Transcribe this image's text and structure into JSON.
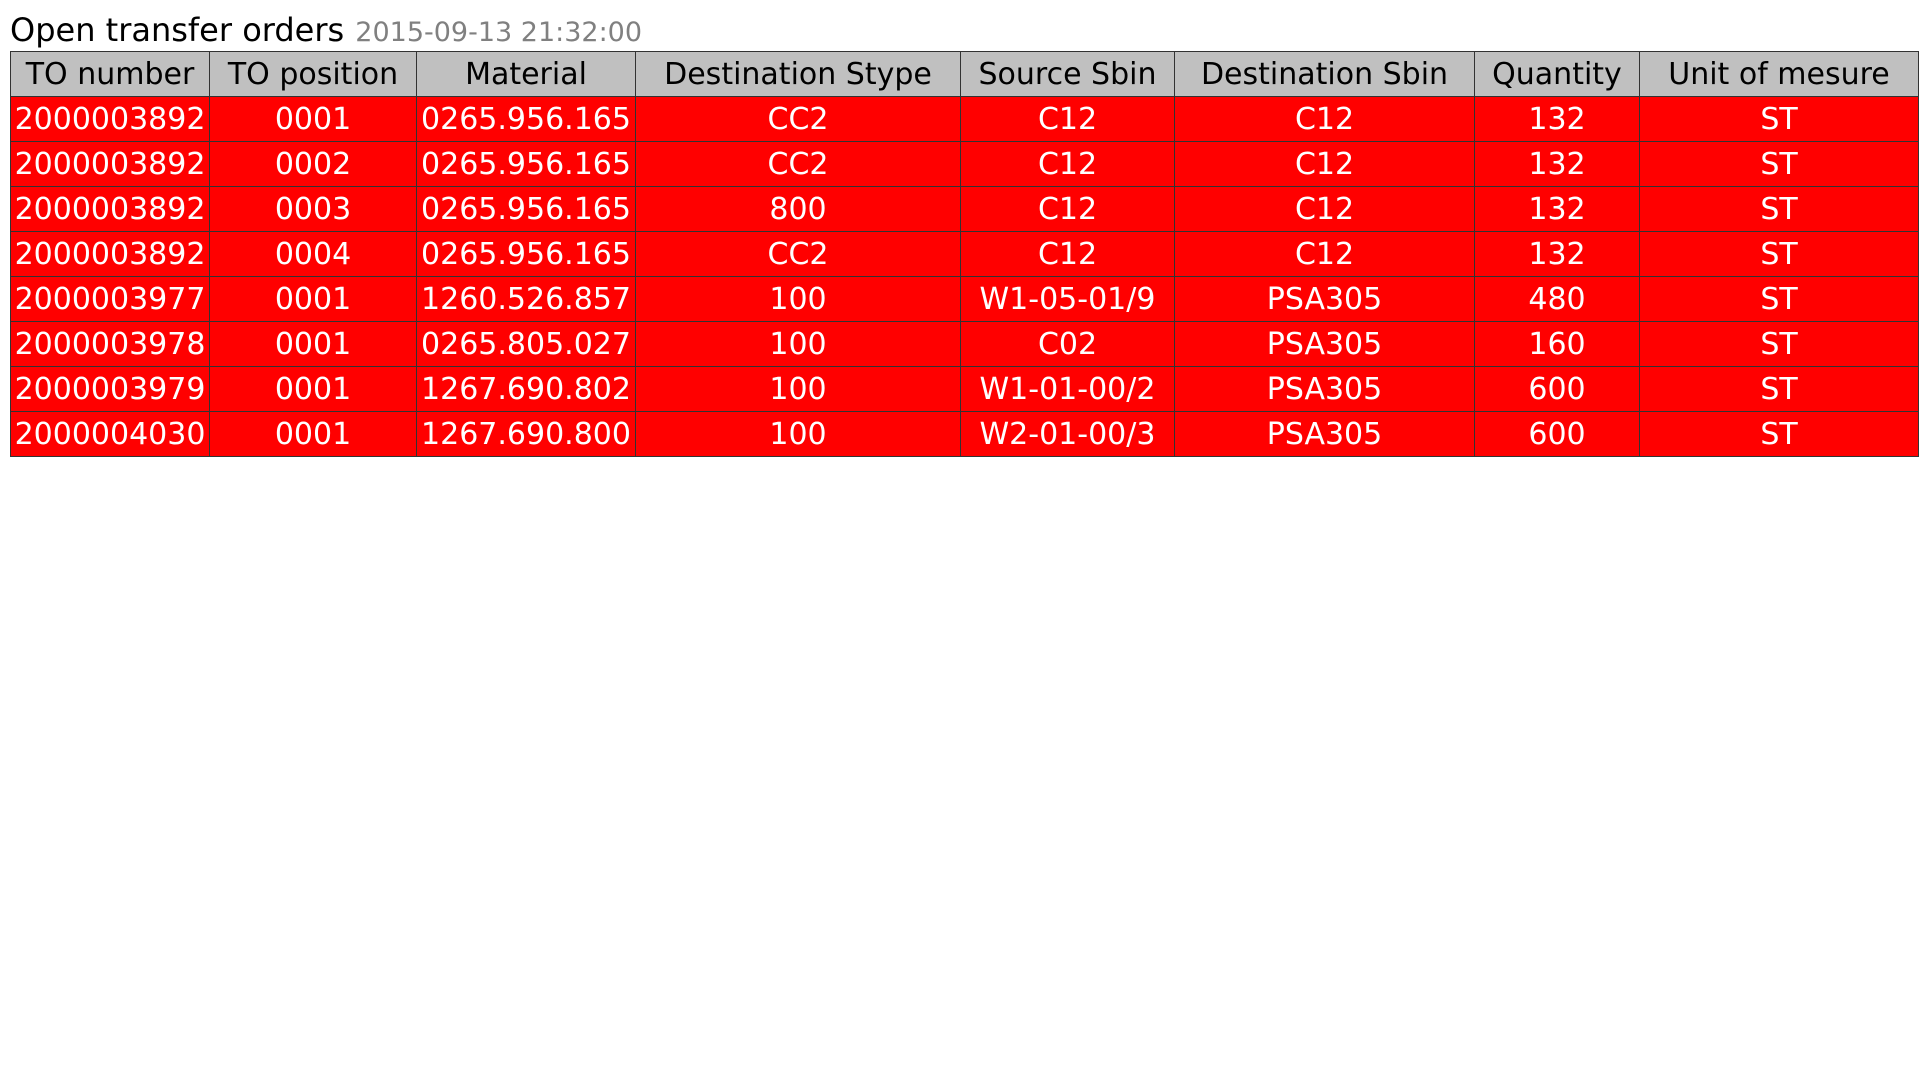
{
  "header": {
    "title": "Open transfer orders",
    "timestamp": "2015-09-13 21:32:00"
  },
  "table": {
    "row_color": "#ff0000",
    "header_color": "#c0c0c0",
    "columns": [
      "TO number",
      "TO position",
      "Material",
      "Destination Stype",
      "Source Sbin",
      "Destination Sbin",
      "Quantity",
      "Unit of mesure"
    ],
    "rows": [
      [
        "2000003892",
        "0001",
        "0265.956.165",
        "CC2",
        "C12",
        "C12",
        "132",
        "ST"
      ],
      [
        "2000003892",
        "0002",
        "0265.956.165",
        "CC2",
        "C12",
        "C12",
        "132",
        "ST"
      ],
      [
        "2000003892",
        "0003",
        "0265.956.165",
        "800",
        "C12",
        "C12",
        "132",
        "ST"
      ],
      [
        "2000003892",
        "0004",
        "0265.956.165",
        "CC2",
        "C12",
        "C12",
        "132",
        "ST"
      ],
      [
        "2000003977",
        "0001",
        "1260.526.857",
        "100",
        "W1-05-01/9",
        "PSA305",
        "480",
        "ST"
      ],
      [
        "2000003978",
        "0001",
        "0265.805.027",
        "100",
        "C02",
        "PSA305",
        "160",
        "ST"
      ],
      [
        "2000003979",
        "0001",
        "1267.690.802",
        "100",
        "W1-01-00/2",
        "PSA305",
        "600",
        "ST"
      ],
      [
        "2000004030",
        "0001",
        "1267.690.800",
        "100",
        "W2-01-00/3",
        "PSA305",
        "600",
        "ST"
      ]
    ]
  }
}
